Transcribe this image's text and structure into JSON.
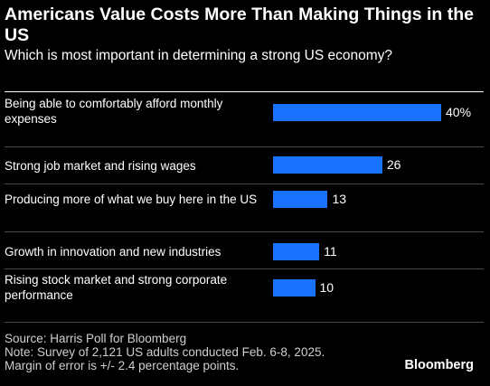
{
  "chart_data": {
    "type": "bar",
    "orientation": "horizontal",
    "title": "Americans Value Costs More Than Making Things in the US",
    "subtitle": "Which is most important in determining a strong US economy?",
    "categories": [
      "Being able to comfortably afford monthly expenses",
      "Strong job market and rising wages",
      "Producing more of what we buy here in the US",
      "Growth in innovation and new industries",
      "Rising stock market and strong corporate performance"
    ],
    "values": [
      40,
      26,
      13,
      11,
      10
    ],
    "value_labels": [
      "40%",
      "26",
      "13",
      "11",
      "10"
    ],
    "xlim": [
      0,
      40
    ],
    "grid": false,
    "bar_color": "#1a73ff"
  },
  "footer": {
    "source": "Source: Harris Poll for Bloomberg",
    "note": "Note: Survey of 2,121 US adults conducted Feb. 6-8, 2025.",
    "margin": "Margin of error is +/- 2.4 percentage points."
  },
  "brand": "Bloomberg"
}
